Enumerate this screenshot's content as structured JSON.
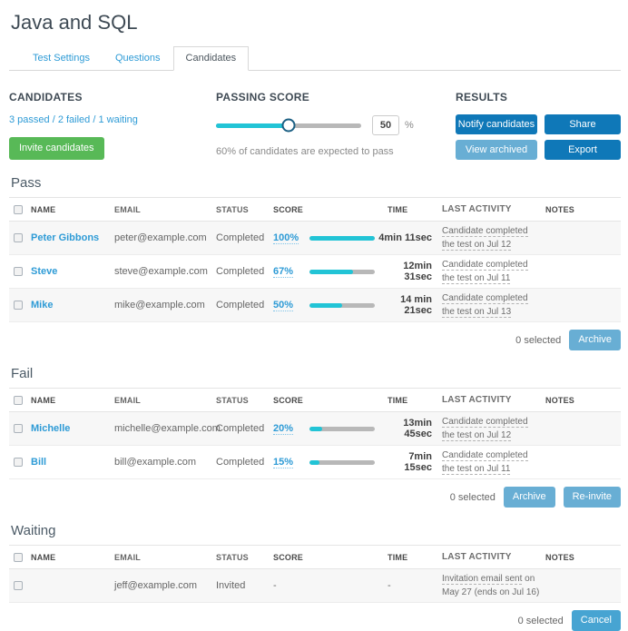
{
  "page": {
    "title": "Java and SQL"
  },
  "tabs": {
    "items": [
      "Test Settings",
      "Questions",
      "Candidates"
    ],
    "active": "Candidates"
  },
  "candidates_panel": {
    "heading": "CANDIDATES",
    "summary": "3 passed / 2 failed / 1 waiting",
    "invite_button": "Invite candidates"
  },
  "passing_score_panel": {
    "heading": "PASSING SCORE",
    "slider_percent": 50,
    "value": "50",
    "unit": "%",
    "note": "60% of candidates are expected to pass"
  },
  "results_panel": {
    "heading": "RESULTS",
    "notify_button": "Notify candidates",
    "share_button": "Share",
    "view_archived_button": "View archived",
    "export_button": "Export"
  },
  "table": {
    "headers": [
      "NAME",
      "EMAIL",
      "STATUS",
      "SCORE",
      "TIME",
      "LAST ACTIVITY",
      "NOTES"
    ]
  },
  "sections": [
    {
      "title": "Pass",
      "rows": [
        {
          "name": "Peter Gibbons",
          "email": "peter@example.com",
          "status": "Completed",
          "score": "100%",
          "score_pct": 100,
          "time": "4min 11sec",
          "activity": {
            "line1": "Candidate completed",
            "line1_plain": "",
            "line2": "the test on Jul 12",
            "line2_underline": true
          }
        },
        {
          "name": "Steve",
          "email": "steve@example.com",
          "status": "Completed",
          "score": "67%",
          "score_pct": 67,
          "time": "12min 31sec",
          "activity": {
            "line1": "Candidate completed",
            "line1_plain": "",
            "line2": "the test on Jul 11",
            "line2_underline": true
          }
        },
        {
          "name": "Mike",
          "email": "mike@example.com",
          "status": "Completed",
          "score": "50%",
          "score_pct": 50,
          "time": "14 min 21sec",
          "activity": {
            "line1": "Candidate completed",
            "line1_plain": "",
            "line2": "the test on Jul 13",
            "line2_underline": true
          }
        }
      ],
      "footer": {
        "selected": "0 selected",
        "buttons": [
          {
            "label": "Archive"
          }
        ]
      }
    },
    {
      "title": "Fail",
      "rows": [
        {
          "name": "Michelle",
          "email": "michelle@example.com",
          "status": "Completed",
          "score": "20%",
          "score_pct": 20,
          "time": "13min 45sec",
          "activity": {
            "line1": "Candidate completed",
            "line1_plain": "",
            "line2": "the test on Jul 12",
            "line2_underline": true
          }
        },
        {
          "name": "Bill",
          "email": "bill@example.com",
          "status": "Completed",
          "score": "15%",
          "score_pct": 15,
          "time": "7min 15sec",
          "activity": {
            "line1": "Candidate completed",
            "line1_plain": "",
            "line2": "the test on Jul 11",
            "line2_underline": true
          }
        }
      ],
      "footer": {
        "selected": "0 selected",
        "buttons": [
          {
            "label": "Archive"
          },
          {
            "label": "Re-invite"
          }
        ]
      }
    },
    {
      "title": "Waiting",
      "rows": [
        {
          "name": "",
          "email": "jeff@example.com",
          "status": "Invited",
          "score": "-",
          "score_pct": null,
          "time": "-",
          "activity": {
            "line1": "Invitation email sent",
            "line1_plain": " on",
            "line2": "May 27 (ends on Jul 16)",
            "line2_underline": false
          }
        }
      ],
      "footer": {
        "selected": "0 selected",
        "buttons": [
          {
            "label": "Cancel"
          }
        ]
      }
    }
  ],
  "colors": {
    "link_blue": "#2e9bd6",
    "button_dark_blue": "#0f78b8",
    "button_light_blue": "#68aed4",
    "button_cancel_blue": "#47a4d2",
    "button_green": "#58b957",
    "progress_cyan": "#22c4d6",
    "slider_handle_border": "#1b5f83",
    "row_alt_gray": "#f7f7f7"
  }
}
